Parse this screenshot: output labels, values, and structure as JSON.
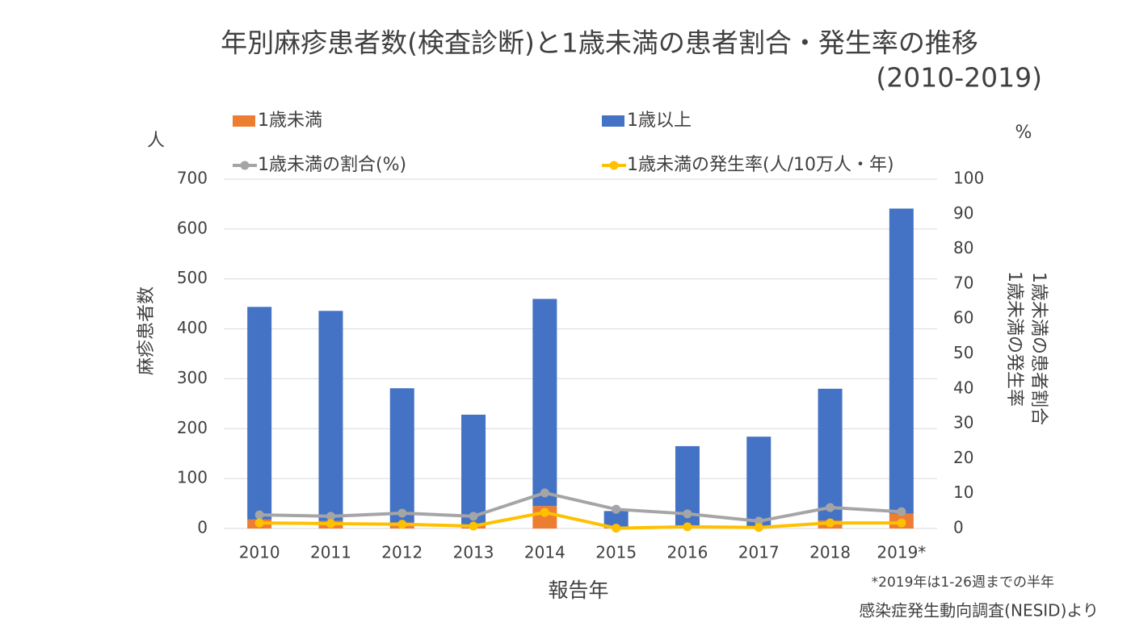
{
  "chart_data": {
    "type": "combo",
    "title": "年別麻疹患者数(検査診断)と1歳未満の患者割合・発生率の推移",
    "subtitle": "(2010-2019)",
    "y_unit": "人",
    "y2_unit": "%",
    "y_label": "麻疹患者数",
    "y2_label": [
      "1歳未満の患者割合",
      "1歳未満の発生率"
    ],
    "x_label": "報告年",
    "notes": [
      "*2019年は1-26週までの半年",
      "感染症発生動向調査(NESID)より"
    ],
    "categories": [
      "2010",
      "2011",
      "2012",
      "2013",
      "2014",
      "2015",
      "2016",
      "2017",
      "2018",
      "2019*"
    ],
    "series": [
      {
        "name": "1歳未満",
        "type": "bar",
        "color": "#ed7d31",
        "values": [
          18,
          15,
          12,
          7,
          45,
          2,
          6,
          3,
          16,
          30
        ]
      },
      {
        "name": "1歳以上",
        "type": "bar",
        "color": "#4472c4",
        "values": [
          426,
          421,
          269,
          221,
          415,
          33,
          159,
          181,
          264,
          611
        ]
      },
      {
        "name": "1歳未満の割合(%)",
        "type": "line",
        "axis": "y2",
        "color": "#a5a5a5",
        "values": [
          3.9,
          3.5,
          4.4,
          3.5,
          10.2,
          5.5,
          4.2,
          2.1,
          6.0,
          4.8
        ]
      },
      {
        "name": "1歳未満の発生率(人/10万人・年)",
        "type": "line",
        "axis": "y2",
        "color": "#ffc000",
        "values": [
          1.6,
          1.4,
          1.2,
          0.7,
          4.6,
          0.1,
          0.5,
          0.3,
          1.6,
          1.6
        ]
      }
    ],
    "ylim": [
      0,
      700
    ],
    "yticks": [
      0,
      100,
      200,
      300,
      400,
      500,
      600,
      700
    ],
    "y2lim": [
      0,
      100
    ],
    "y2ticks": [
      0,
      10,
      20,
      30,
      40,
      50,
      60,
      70,
      80,
      90,
      100
    ],
    "grid": true
  }
}
